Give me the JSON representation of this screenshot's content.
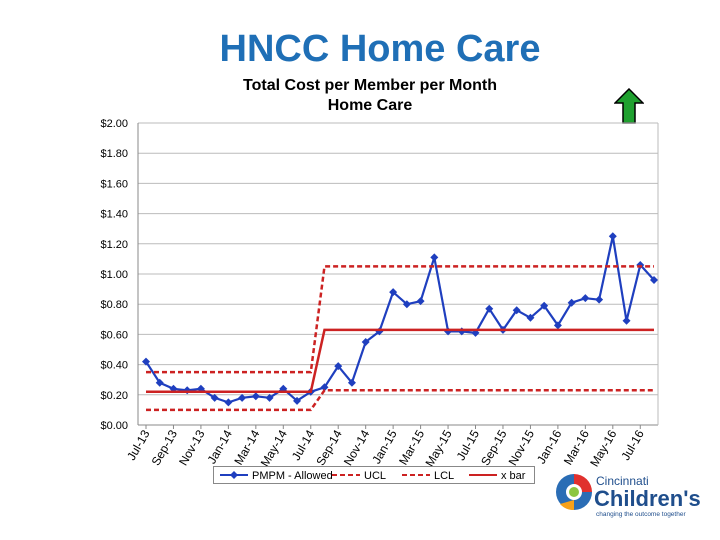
{
  "header": {
    "title": "HNCC Home Care"
  },
  "chart_data": {
    "type": "line",
    "title": "Total Cost per Member per Month",
    "subtitle": "Home Care",
    "ylim": [
      0,
      2
    ],
    "y_ticks": [
      "$0.00",
      "$0.20",
      "$0.40",
      "$0.60",
      "$0.80",
      "$1.00",
      "$1.20",
      "$1.40",
      "$1.60",
      "$1.80",
      "$2.00"
    ],
    "x_tick_labels": [
      "Jul-13",
      "Sep-13",
      "Nov-13",
      "Jan-14",
      "Mar-14",
      "May-14",
      "Jul-14",
      "Sep-14",
      "Nov-14",
      "Jan-15",
      "Mar-15",
      "May-15",
      "Jul-15",
      "Sep-15",
      "Nov-15",
      "Jan-16",
      "Mar-16",
      "May-16",
      "Jul-16"
    ],
    "grid": true,
    "legend_position": "bottom",
    "series": [
      {
        "name": "PMPM - Allowed",
        "color": "#1f3fbf",
        "style": "solid-markers",
        "values": [
          0.42,
          0.28,
          0.24,
          0.23,
          0.24,
          0.18,
          0.15,
          0.18,
          0.19,
          0.18,
          0.24,
          0.16,
          0.22,
          0.25,
          0.39,
          0.28,
          0.55,
          0.62,
          0.88,
          0.8,
          0.82,
          1.11,
          0.62,
          0.62,
          0.61,
          0.77,
          0.63,
          0.76,
          0.71,
          0.79,
          0.66,
          0.81,
          0.84,
          0.83,
          1.25,
          0.69,
          1.06,
          0.96
        ]
      },
      {
        "name": "UCL",
        "color": "#cc2222",
        "style": "dashed",
        "values": [
          0.35,
          0.35,
          0.35,
          0.35,
          0.35,
          0.35,
          0.35,
          0.35,
          0.35,
          0.35,
          0.35,
          0.35,
          0.35,
          1.05,
          1.05,
          1.05,
          1.05,
          1.05,
          1.05,
          1.05,
          1.05,
          1.05,
          1.05,
          1.05,
          1.05,
          1.05,
          1.05,
          1.05,
          1.05,
          1.05,
          1.05,
          1.05,
          1.05,
          1.05,
          1.05,
          1.05,
          1.05,
          1.05
        ]
      },
      {
        "name": "LCL",
        "color": "#cc2222",
        "style": "dashed",
        "values": [
          0.1,
          0.1,
          0.1,
          0.1,
          0.1,
          0.1,
          0.1,
          0.1,
          0.1,
          0.1,
          0.1,
          0.1,
          0.1,
          0.23,
          0.23,
          0.23,
          0.23,
          0.23,
          0.23,
          0.23,
          0.23,
          0.23,
          0.23,
          0.23,
          0.23,
          0.23,
          0.23,
          0.23,
          0.23,
          0.23,
          0.23,
          0.23,
          0.23,
          0.23,
          0.23,
          0.23,
          0.23,
          0.23
        ]
      },
      {
        "name": "x bar",
        "color": "#cc2222",
        "style": "solid",
        "values": [
          0.22,
          0.22,
          0.22,
          0.22,
          0.22,
          0.22,
          0.22,
          0.22,
          0.22,
          0.22,
          0.22,
          0.22,
          0.22,
          0.63,
          0.63,
          0.63,
          0.63,
          0.63,
          0.63,
          0.63,
          0.63,
          0.63,
          0.63,
          0.63,
          0.63,
          0.63,
          0.63,
          0.63,
          0.63,
          0.63,
          0.63,
          0.63,
          0.63,
          0.63,
          0.63,
          0.63,
          0.63,
          0.63
        ]
      }
    ]
  },
  "logo": {
    "line1": "Cincinnati",
    "line2": "Children's",
    "line3": "changing the outcome together"
  },
  "icons": {
    "arrow": "up-arrow-icon",
    "arrow_color": "#1fa02f"
  }
}
